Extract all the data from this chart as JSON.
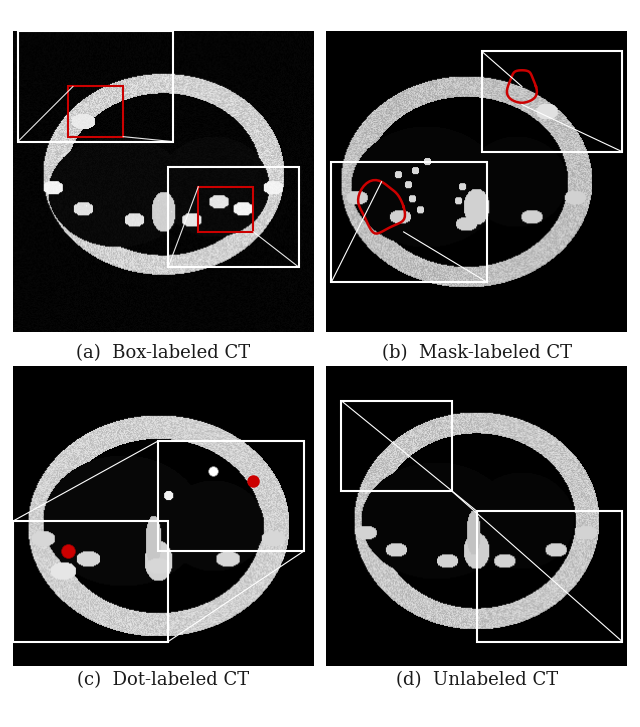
{
  "figure_width": 6.4,
  "figure_height": 7.27,
  "dpi": 100,
  "background_color": "#ffffff",
  "captions": [
    "(a)  Box-labeled CT",
    "(b)  Mask-labeled CT",
    "(c)  Dot-labeled CT",
    "(d)  Unlabeled CT"
  ],
  "caption_fontsize": 13,
  "caption_color": "#1a1a1a",
  "image_bg": "#000000",
  "box_color_red": "#cc0000",
  "box_color_white": "#ffffff",
  "line_color_white": "#ffffff",
  "dot_color_red": "#cc0000",
  "dot_color_white": "#ffffff"
}
